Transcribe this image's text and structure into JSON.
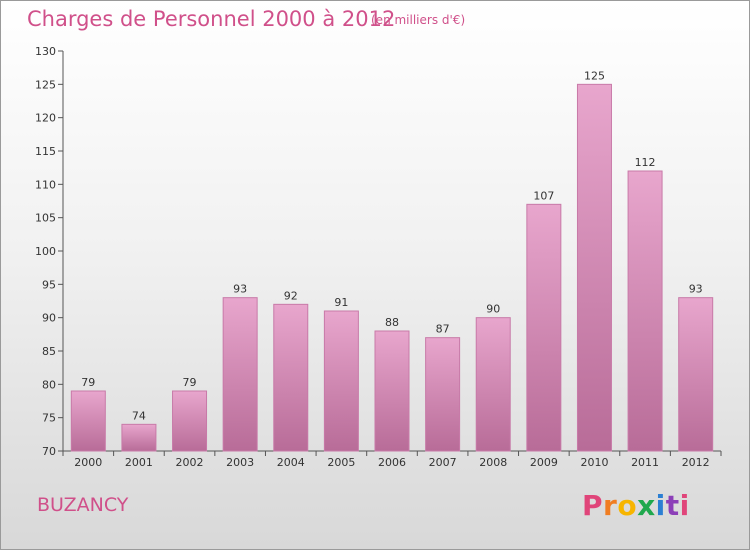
{
  "header": {
    "title": "Charges de Personnel 2000 à 2012",
    "subtitle": "(en milliers d'€)"
  },
  "footer": {
    "commune": "BUZANCY",
    "brand": "Proxiti"
  },
  "colors": {
    "title": "#d0508a",
    "bar_top": "#e8a6cd",
    "bar_bottom": "#b86c98",
    "bar_border": "#c87aa8",
    "brand_letters": [
      "#e0457a",
      "#f07d22",
      "#f7b500",
      "#1fa84d",
      "#2b7fd3",
      "#8c3fb8",
      "#e0457a"
    ]
  },
  "chart_data": {
    "type": "bar",
    "title": "Charges de Personnel 2000 à 2012",
    "subtitle": "(en milliers d'€)",
    "xlabel": "",
    "ylabel": "",
    "categories": [
      "2000",
      "2001",
      "2002",
      "2003",
      "2004",
      "2005",
      "2006",
      "2007",
      "2008",
      "2009",
      "2010",
      "2011",
      "2012"
    ],
    "values": [
      79,
      74,
      79,
      93,
      92,
      91,
      88,
      87,
      90,
      107,
      125,
      112,
      93
    ],
    "ylim": [
      70,
      130
    ],
    "yticks": [
      70,
      75,
      80,
      85,
      90,
      95,
      100,
      105,
      110,
      115,
      120,
      125,
      130
    ],
    "grid": false,
    "legend": "none"
  }
}
